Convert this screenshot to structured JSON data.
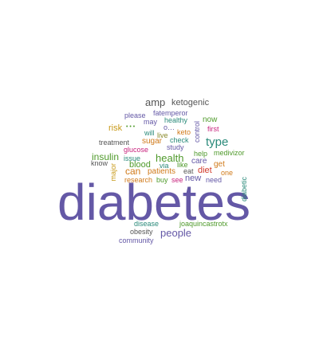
{
  "palette": {
    "purple": "#6458a6",
    "teal": "#2a8a7a",
    "green": "#4f9a2b",
    "orange": "#d07a1a",
    "red": "#d23a2a",
    "magenta": "#c8247e",
    "gray": "#555555",
    "gold": "#c89a1a",
    "olive": "#8a8a2a"
  },
  "words": [
    {
      "id": "w-diabetes",
      "text": "diabetes",
      "color": "#6458a6"
    },
    {
      "id": "w-amp",
      "text": "amp",
      "color": "#555555"
    },
    {
      "id": "w-ketogenic",
      "text": "ketogenic",
      "color": "#555555"
    },
    {
      "id": "w-please",
      "text": "please",
      "color": "#6458a6"
    },
    {
      "id": "w-fatemperor",
      "text": "fatemperor",
      "color": "#6458a6"
    },
    {
      "id": "w-may",
      "text": "may",
      "color": "#6458a6"
    },
    {
      "id": "w-healthy",
      "text": "healthy",
      "color": "#2a8a7a"
    },
    {
      "id": "w-now",
      "text": "now",
      "color": "#4f9a2b"
    },
    {
      "id": "w-risk",
      "text": "risk",
      "color": "#c89a1a"
    },
    {
      "id": "w-dots",
      "text": "• • •",
      "color": "#4f9a2b"
    },
    {
      "id": "w-o",
      "text": "o…",
      "color": "#6458a6"
    },
    {
      "id": "w-will",
      "text": "will",
      "color": "#2a8a7a"
    },
    {
      "id": "w-live",
      "text": "live",
      "color": "#8a8a2a"
    },
    {
      "id": "w-keto",
      "text": "keto",
      "color": "#d07a1a"
    },
    {
      "id": "w-control",
      "text": "control",
      "color": "#6458a6"
    },
    {
      "id": "w-first",
      "text": "first",
      "color": "#c8247e"
    },
    {
      "id": "w-treatment",
      "text": "treatment",
      "color": "#555555"
    },
    {
      "id": "w-sugar",
      "text": "sugar",
      "color": "#d07a1a"
    },
    {
      "id": "w-check",
      "text": "check",
      "color": "#2a8a7a"
    },
    {
      "id": "w-type",
      "text": "type",
      "color": "#2a8a7a"
    },
    {
      "id": "w-glucose",
      "text": "glucose",
      "color": "#c8247e"
    },
    {
      "id": "w-study",
      "text": "study",
      "color": "#6458a6"
    },
    {
      "id": "w-insulin",
      "text": "insulin",
      "color": "#4f9a2b"
    },
    {
      "id": "w-issue",
      "text": "issue",
      "color": "#2a8a7a"
    },
    {
      "id": "w-health",
      "text": "health",
      "color": "#4f9a2b"
    },
    {
      "id": "w-help",
      "text": "help",
      "color": "#4f9a2b"
    },
    {
      "id": "w-medivizor",
      "text": "medivizor",
      "color": "#4f9a2b"
    },
    {
      "id": "w-know",
      "text": "know",
      "color": "#555555"
    },
    {
      "id": "w-blood",
      "text": "blood",
      "color": "#4f9a2b"
    },
    {
      "id": "w-via",
      "text": "via",
      "color": "#2a8a7a"
    },
    {
      "id": "w-like",
      "text": "like",
      "color": "#4f9a2b"
    },
    {
      "id": "w-care",
      "text": "care",
      "color": "#6458a6"
    },
    {
      "id": "w-get",
      "text": "get",
      "color": "#d07a1a"
    },
    {
      "id": "w-major",
      "text": "major",
      "color": "#c89a1a"
    },
    {
      "id": "w-can",
      "text": "can",
      "color": "#d07a1a"
    },
    {
      "id": "w-patients",
      "text": "patients",
      "color": "#d07a1a"
    },
    {
      "id": "w-eat",
      "text": "eat",
      "color": "#555555"
    },
    {
      "id": "w-diet",
      "text": "diet",
      "color": "#d23a2a"
    },
    {
      "id": "w-one",
      "text": "one",
      "color": "#d07a1a"
    },
    {
      "id": "w-research",
      "text": "research",
      "color": "#d07a1a"
    },
    {
      "id": "w-buy",
      "text": "buy",
      "color": "#4f9a2b"
    },
    {
      "id": "w-see",
      "text": "see",
      "color": "#c8247e"
    },
    {
      "id": "w-new",
      "text": "new",
      "color": "#6458a6"
    },
    {
      "id": "w-need",
      "text": "need",
      "color": "#6458a6"
    },
    {
      "id": "w-diabetic",
      "text": "diabetic",
      "color": "#2a8a7a"
    },
    {
      "id": "w-disease",
      "text": "disease",
      "color": "#2a8a7a"
    },
    {
      "id": "w-joaquincastrotx",
      "text": "joaquincastrotx",
      "color": "#4f9a2b"
    },
    {
      "id": "w-obesity",
      "text": "obesity",
      "color": "#555555"
    },
    {
      "id": "w-people",
      "text": "people",
      "color": "#6458a6"
    },
    {
      "id": "w-community",
      "text": "community",
      "color": "#6458a6"
    }
  ]
}
